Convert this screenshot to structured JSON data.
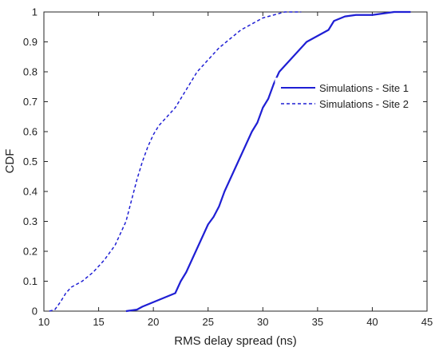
{
  "chart_data": {
    "type": "line",
    "xlabel": "RMS delay spread (ns)",
    "ylabel": "CDF",
    "xlim": [
      10,
      45
    ],
    "ylim": [
      0,
      1
    ],
    "x_ticks": [
      "10",
      "15",
      "20",
      "25",
      "30",
      "35",
      "40",
      "45"
    ],
    "y_ticks": [
      "0",
      "0.1",
      "0.2",
      "0.3",
      "0.4",
      "0.5",
      "0.6",
      "0.7",
      "0.8",
      "0.9",
      "1"
    ],
    "grid": false,
    "legend_position": "right",
    "series": [
      {
        "name": "Simulations - Site 1",
        "color": "#1f1fd4",
        "line_style": "solid",
        "points": [
          [
            17.5,
            0.0
          ],
          [
            18.5,
            0.005
          ],
          [
            19.0,
            0.015
          ],
          [
            20.0,
            0.03
          ],
          [
            21.0,
            0.045
          ],
          [
            22.0,
            0.06
          ],
          [
            22.5,
            0.1
          ],
          [
            23.0,
            0.13
          ],
          [
            23.5,
            0.17
          ],
          [
            24.0,
            0.21
          ],
          [
            24.5,
            0.25
          ],
          [
            25.0,
            0.29
          ],
          [
            25.5,
            0.315
          ],
          [
            26.0,
            0.35
          ],
          [
            26.5,
            0.4
          ],
          [
            27.0,
            0.44
          ],
          [
            27.5,
            0.48
          ],
          [
            28.0,
            0.52
          ],
          [
            28.5,
            0.56
          ],
          [
            29.0,
            0.6
          ],
          [
            29.5,
            0.63
          ],
          [
            30.0,
            0.68
          ],
          [
            30.5,
            0.71
          ],
          [
            31.0,
            0.76
          ],
          [
            31.5,
            0.8
          ],
          [
            32.0,
            0.82
          ],
          [
            32.5,
            0.84
          ],
          [
            33.0,
            0.86
          ],
          [
            33.5,
            0.88
          ],
          [
            34.0,
            0.9
          ],
          [
            35.0,
            0.92
          ],
          [
            36.0,
            0.94
          ],
          [
            36.5,
            0.97
          ],
          [
            37.5,
            0.985
          ],
          [
            38.5,
            0.99
          ],
          [
            40.0,
            0.99
          ],
          [
            41.0,
            0.995
          ],
          [
            42.0,
            1.0
          ],
          [
            43.5,
            1.0
          ]
        ]
      },
      {
        "name": "Simulations - Site 2",
        "color": "#1f1fd4",
        "line_style": "dashed",
        "points": [
          [
            10.5,
            0.0
          ],
          [
            11.0,
            0.005
          ],
          [
            11.5,
            0.03
          ],
          [
            12.0,
            0.06
          ],
          [
            12.5,
            0.08
          ],
          [
            13.5,
            0.1
          ],
          [
            14.5,
            0.13
          ],
          [
            15.5,
            0.17
          ],
          [
            16.5,
            0.22
          ],
          [
            17.5,
            0.3
          ],
          [
            18.0,
            0.37
          ],
          [
            18.5,
            0.44
          ],
          [
            19.0,
            0.5
          ],
          [
            19.5,
            0.55
          ],
          [
            20.0,
            0.59
          ],
          [
            20.5,
            0.62
          ],
          [
            21.0,
            0.64
          ],
          [
            21.5,
            0.66
          ],
          [
            22.0,
            0.68
          ],
          [
            22.5,
            0.71
          ],
          [
            23.0,
            0.74
          ],
          [
            23.5,
            0.77
          ],
          [
            24.0,
            0.8
          ],
          [
            25.0,
            0.84
          ],
          [
            26.0,
            0.88
          ],
          [
            27.0,
            0.91
          ],
          [
            28.0,
            0.94
          ],
          [
            29.0,
            0.96
          ],
          [
            30.0,
            0.98
          ],
          [
            31.0,
            0.99
          ],
          [
            32.0,
            1.0
          ],
          [
            33.5,
            1.0
          ]
        ]
      }
    ]
  }
}
